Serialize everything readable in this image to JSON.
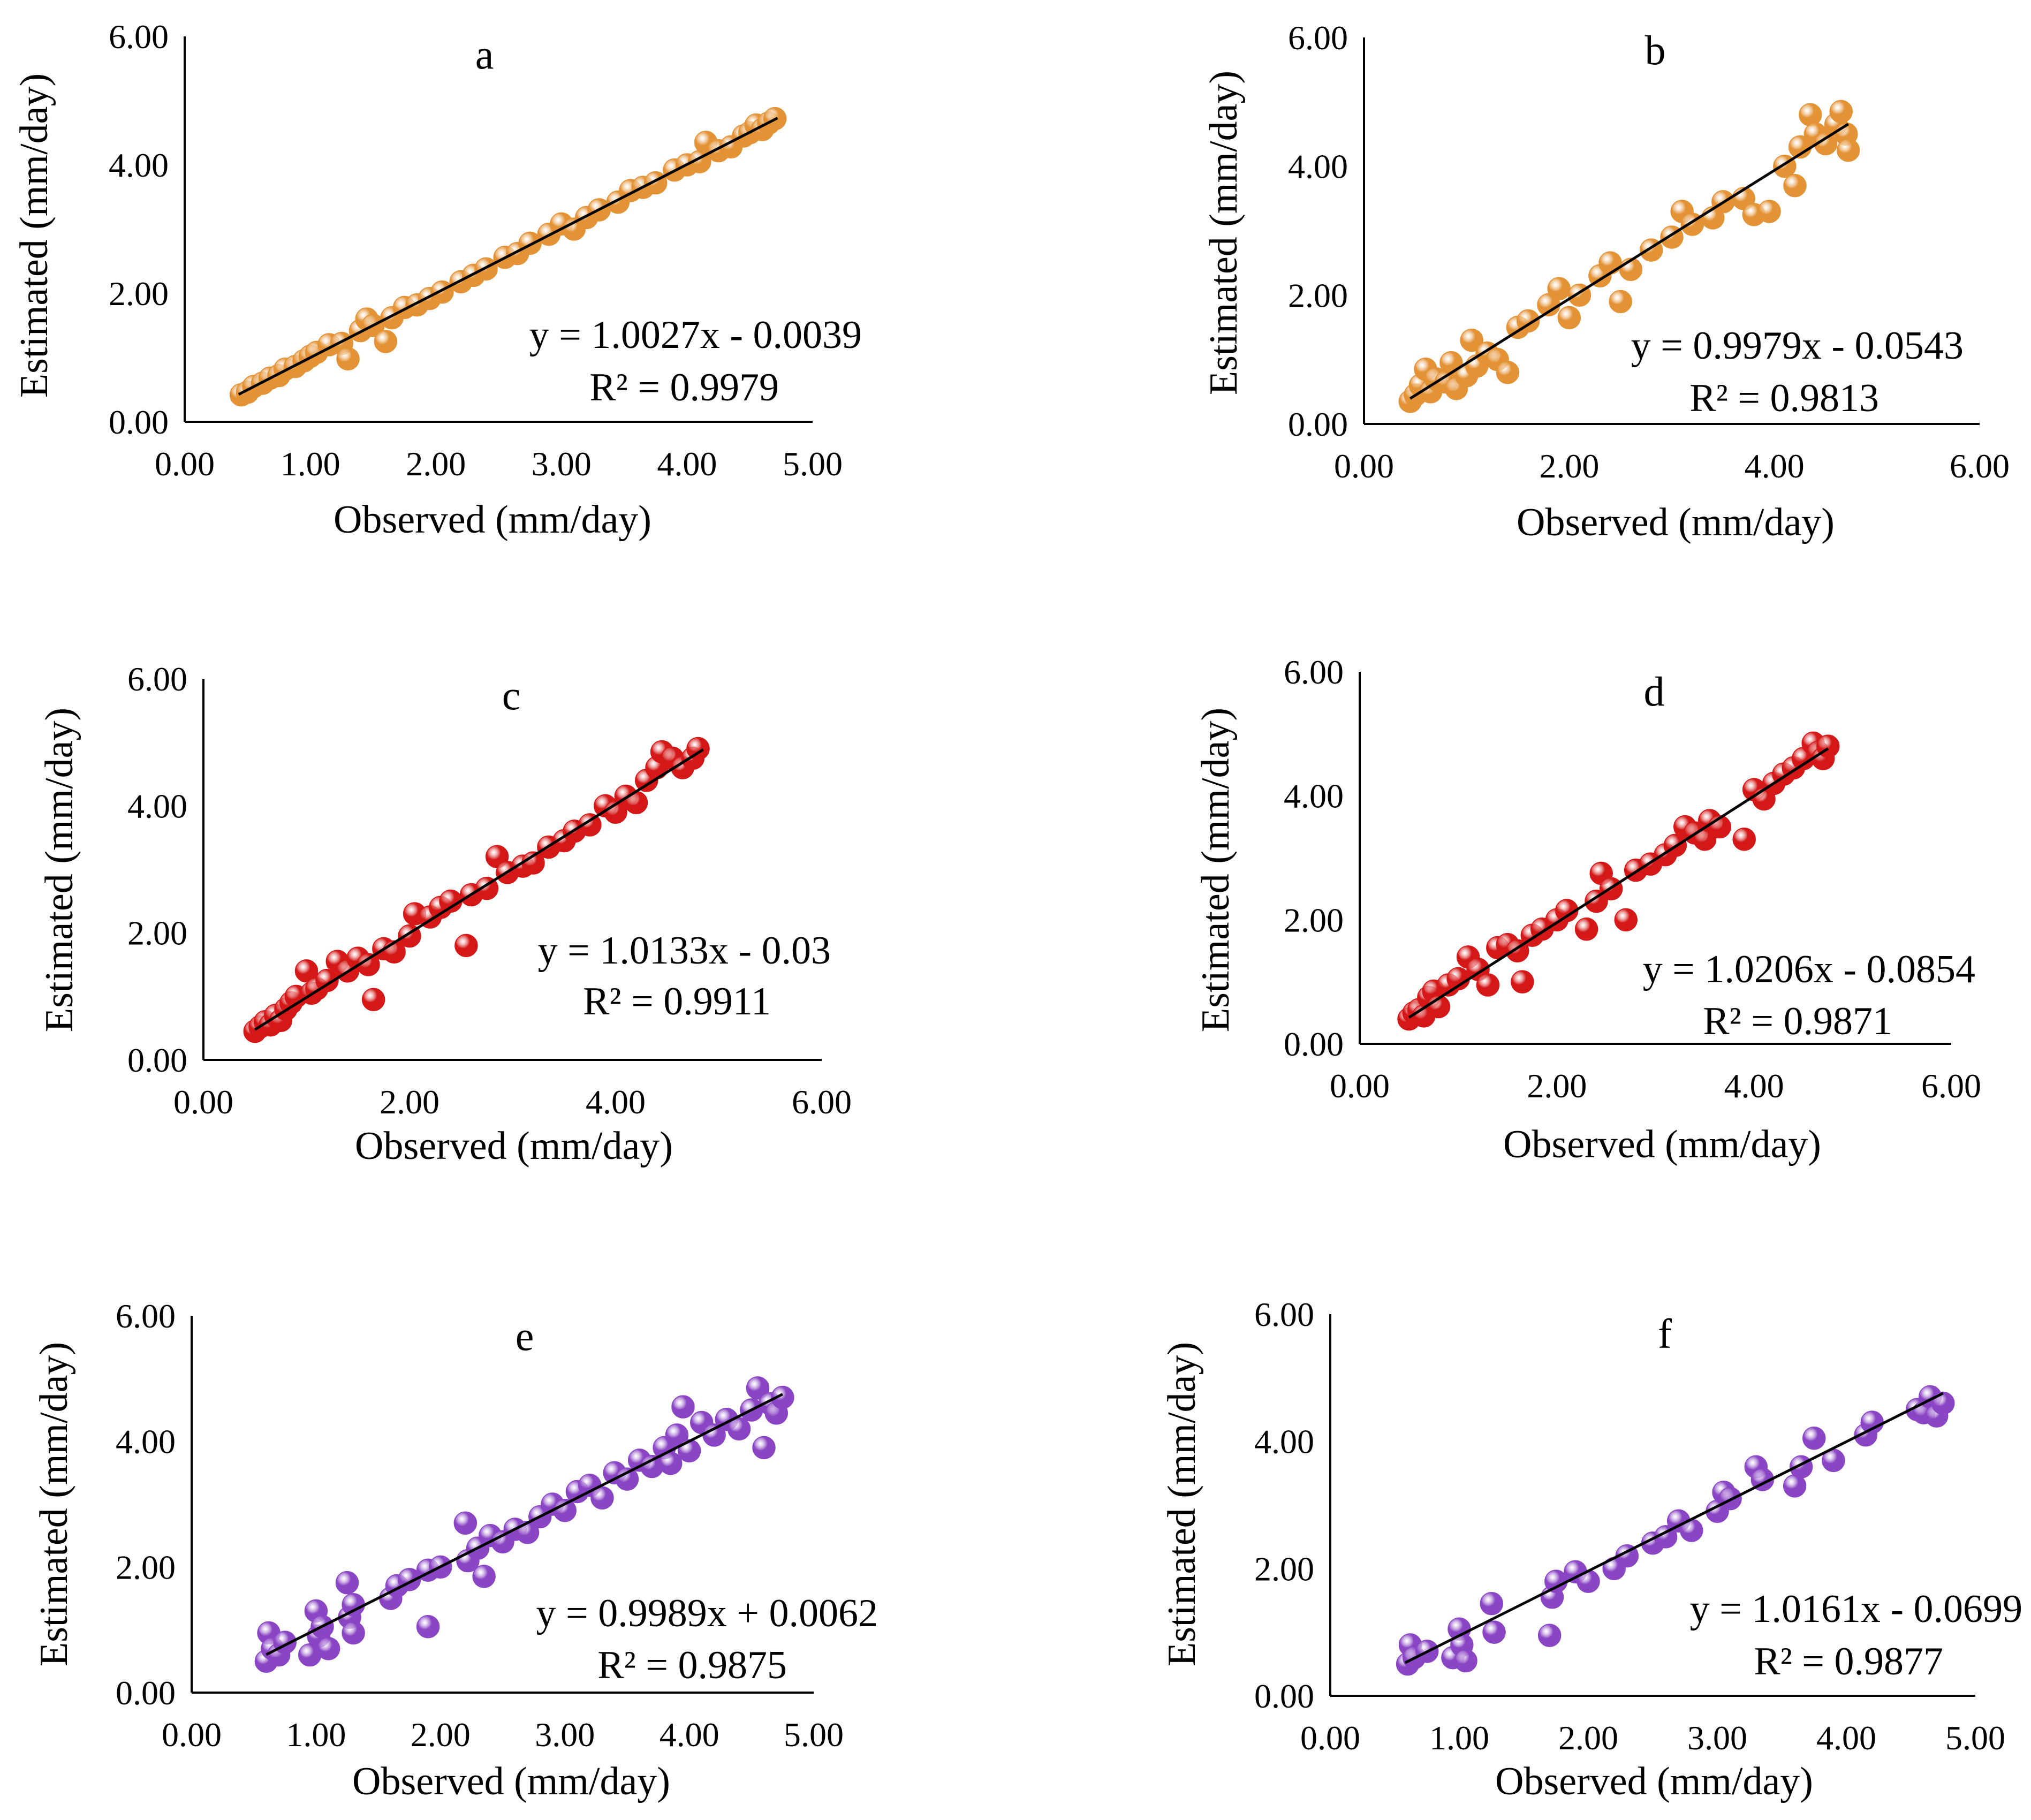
{
  "colors": {
    "orange": "#e39235",
    "red": "#d41818",
    "purple": "#8a45c4",
    "axis": "#000000"
  },
  "chart_data": [
    {
      "panel": "a",
      "type": "scatter",
      "marker_color": "orange",
      "xlim": [
        0,
        5
      ],
      "ylim": [
        0,
        6
      ],
      "xticks": [
        "0.00",
        "1.00",
        "2.00",
        "3.00",
        "4.00",
        "5.00"
      ],
      "yticks": [
        "0.00",
        "2.00",
        "4.00",
        "6.00"
      ],
      "xlabel": "Observed (mm/day)",
      "ylabel": "Estimated (mm/day)",
      "trendline": {
        "slope": 1.0027,
        "intercept": -0.0039,
        "x_range": [
          0.43,
          4.72
        ]
      },
      "equation": "y = 1.0027x - 0.0039",
      "r2_text": "R² = 0.9979",
      "points": [
        [
          0.45,
          0.42
        ],
        [
          0.5,
          0.46
        ],
        [
          0.55,
          0.55
        ],
        [
          0.62,
          0.6
        ],
        [
          0.68,
          0.68
        ],
        [
          0.75,
          0.72
        ],
        [
          0.8,
          0.82
        ],
        [
          0.88,
          0.86
        ],
        [
          0.95,
          0.95
        ],
        [
          1.0,
          1.02
        ],
        [
          1.05,
          1.08
        ],
        [
          1.15,
          1.2
        ],
        [
          1.25,
          1.22
        ],
        [
          1.3,
          0.98
        ],
        [
          1.4,
          1.42
        ],
        [
          1.45,
          1.6
        ],
        [
          1.5,
          1.5
        ],
        [
          1.6,
          1.25
        ],
        [
          1.65,
          1.62
        ],
        [
          1.75,
          1.78
        ],
        [
          1.85,
          1.82
        ],
        [
          1.95,
          1.92
        ],
        [
          2.05,
          2.02
        ],
        [
          2.2,
          2.18
        ],
        [
          2.3,
          2.28
        ],
        [
          2.4,
          2.38
        ],
        [
          2.55,
          2.56
        ],
        [
          2.65,
          2.62
        ],
        [
          2.75,
          2.78
        ],
        [
          2.9,
          2.92
        ],
        [
          3.0,
          3.08
        ],
        [
          3.1,
          3.0
        ],
        [
          3.2,
          3.18
        ],
        [
          3.3,
          3.3
        ],
        [
          3.45,
          3.42
        ],
        [
          3.55,
          3.6
        ],
        [
          3.65,
          3.65
        ],
        [
          3.75,
          3.72
        ],
        [
          3.9,
          3.92
        ],
        [
          4.0,
          4.0
        ],
        [
          4.1,
          4.05
        ],
        [
          4.15,
          4.35
        ],
        [
          4.25,
          4.22
        ],
        [
          4.35,
          4.28
        ],
        [
          4.45,
          4.45
        ],
        [
          4.5,
          4.5
        ],
        [
          4.55,
          4.62
        ],
        [
          4.6,
          4.55
        ],
        [
          4.65,
          4.65
        ],
        [
          4.7,
          4.72
        ]
      ]
    },
    {
      "panel": "b",
      "type": "scatter",
      "marker_color": "orange",
      "xlim": [
        0,
        6
      ],
      "ylim": [
        0,
        6
      ],
      "xticks": [
        "0.00",
        "2.00",
        "4.00",
        "6.00"
      ],
      "yticks": [
        "0.00",
        "2.00",
        "4.00",
        "6.00"
      ],
      "xlabel": "Observed (mm/day)",
      "ylabel": "Estimated (mm/day)",
      "trendline": {
        "slope": 0.9979,
        "intercept": -0.0543,
        "x_range": [
          0.45,
          4.72
        ]
      },
      "equation": "y = 0.9979x - 0.0543",
      "r2_text": "R² = 0.9813",
      "points": [
        [
          0.45,
          0.35
        ],
        [
          0.5,
          0.45
        ],
        [
          0.55,
          0.6
        ],
        [
          0.6,
          0.85
        ],
        [
          0.65,
          0.5
        ],
        [
          0.7,
          0.7
        ],
        [
          0.8,
          0.65
        ],
        [
          0.85,
          0.95
        ],
        [
          0.9,
          0.55
        ],
        [
          1.0,
          0.75
        ],
        [
          1.05,
          1.3
        ],
        [
          1.1,
          0.9
        ],
        [
          1.2,
          1.1
        ],
        [
          1.3,
          1.0
        ],
        [
          1.4,
          0.8
        ],
        [
          1.5,
          1.5
        ],
        [
          1.6,
          1.6
        ],
        [
          1.8,
          1.85
        ],
        [
          1.9,
          2.1
        ],
        [
          2.0,
          1.65
        ],
        [
          2.1,
          2.0
        ],
        [
          2.3,
          2.3
        ],
        [
          2.4,
          2.5
        ],
        [
          2.5,
          1.9
        ],
        [
          2.6,
          2.4
        ],
        [
          2.8,
          2.7
        ],
        [
          3.0,
          2.9
        ],
        [
          3.1,
          3.3
        ],
        [
          3.2,
          3.1
        ],
        [
          3.4,
          3.2
        ],
        [
          3.5,
          3.45
        ],
        [
          3.7,
          3.5
        ],
        [
          3.8,
          3.25
        ],
        [
          3.95,
          3.3
        ],
        [
          4.1,
          4.0
        ],
        [
          4.2,
          3.7
        ],
        [
          4.25,
          4.3
        ],
        [
          4.35,
          4.8
        ],
        [
          4.4,
          4.5
        ],
        [
          4.5,
          4.35
        ],
        [
          4.6,
          4.65
        ],
        [
          4.65,
          4.85
        ],
        [
          4.7,
          4.5
        ],
        [
          4.72,
          4.25
        ]
      ]
    },
    {
      "panel": "c",
      "type": "scatter",
      "marker_color": "red",
      "xlim": [
        0,
        6
      ],
      "ylim": [
        0,
        6
      ],
      "xticks": [
        "0.00",
        "2.00",
        "4.00",
        "6.00"
      ],
      "yticks": [
        "0.00",
        "2.00",
        "4.00",
        "6.00"
      ],
      "xlabel": "Observed (mm/day)",
      "ylabel": "Estimated (mm/day)",
      "trendline": {
        "slope": 1.0133,
        "intercept": -0.03,
        "x_range": [
          0.5,
          4.85
        ]
      },
      "equation": "y = 1.0133x - 0.03",
      "r2_text": "R² = 0.9911",
      "points": [
        [
          0.5,
          0.45
        ],
        [
          0.55,
          0.52
        ],
        [
          0.6,
          0.6
        ],
        [
          0.65,
          0.55
        ],
        [
          0.7,
          0.7
        ],
        [
          0.75,
          0.62
        ],
        [
          0.8,
          0.8
        ],
        [
          0.85,
          0.9
        ],
        [
          0.9,
          1.0
        ],
        [
          1.0,
          1.4
        ],
        [
          1.05,
          1.05
        ],
        [
          1.1,
          1.12
        ],
        [
          1.2,
          1.25
        ],
        [
          1.3,
          1.55
        ],
        [
          1.4,
          1.4
        ],
        [
          1.5,
          1.6
        ],
        [
          1.6,
          1.5
        ],
        [
          1.65,
          0.95
        ],
        [
          1.75,
          1.75
        ],
        [
          1.85,
          1.7
        ],
        [
          2.0,
          1.95
        ],
        [
          2.05,
          2.3
        ],
        [
          2.2,
          2.25
        ],
        [
          2.3,
          2.4
        ],
        [
          2.4,
          2.5
        ],
        [
          2.55,
          1.8
        ],
        [
          2.6,
          2.6
        ],
        [
          2.75,
          2.7
        ],
        [
          2.85,
          3.2
        ],
        [
          2.95,
          2.95
        ],
        [
          3.1,
          3.05
        ],
        [
          3.2,
          3.1
        ],
        [
          3.35,
          3.35
        ],
        [
          3.5,
          3.45
        ],
        [
          3.6,
          3.6
        ],
        [
          3.75,
          3.7
        ],
        [
          3.9,
          4.0
        ],
        [
          4.0,
          3.9
        ],
        [
          4.1,
          4.15
        ],
        [
          4.2,
          4.05
        ],
        [
          4.3,
          4.4
        ],
        [
          4.4,
          4.6
        ],
        [
          4.45,
          4.85
        ],
        [
          4.55,
          4.75
        ],
        [
          4.65,
          4.6
        ],
        [
          4.75,
          4.75
        ],
        [
          4.8,
          4.9
        ]
      ]
    },
    {
      "panel": "d",
      "type": "scatter",
      "marker_color": "red",
      "xlim": [
        0,
        6
      ],
      "ylim": [
        0,
        6
      ],
      "xticks": [
        "0.00",
        "2.00",
        "4.00",
        "6.00"
      ],
      "yticks": [
        "0.00",
        "2.00",
        "4.00",
        "6.00"
      ],
      "xlabel": "Observed (mm/day)",
      "ylabel": "Estimated (mm/day)",
      "trendline": {
        "slope": 1.0206,
        "intercept": -0.0854,
        "x_range": [
          0.5,
          4.75
        ]
      },
      "equation": "y = 1.0206x - 0.0854",
      "r2_text": "R² = 0.9871",
      "points": [
        [
          0.5,
          0.4
        ],
        [
          0.55,
          0.5
        ],
        [
          0.6,
          0.55
        ],
        [
          0.65,
          0.45
        ],
        [
          0.7,
          0.75
        ],
        [
          0.75,
          0.85
        ],
        [
          0.8,
          0.6
        ],
        [
          0.9,
          0.95
        ],
        [
          1.0,
          1.05
        ],
        [
          1.1,
          1.4
        ],
        [
          1.2,
          1.2
        ],
        [
          1.3,
          0.95
        ],
        [
          1.4,
          1.55
        ],
        [
          1.5,
          1.6
        ],
        [
          1.6,
          1.5
        ],
        [
          1.65,
          1.0
        ],
        [
          1.75,
          1.75
        ],
        [
          1.85,
          1.85
        ],
        [
          2.0,
          2.0
        ],
        [
          2.1,
          2.15
        ],
        [
          2.3,
          1.85
        ],
        [
          2.4,
          2.3
        ],
        [
          2.45,
          2.75
        ],
        [
          2.55,
          2.5
        ],
        [
          2.7,
          2.0
        ],
        [
          2.8,
          2.8
        ],
        [
          2.95,
          2.9
        ],
        [
          3.1,
          3.05
        ],
        [
          3.2,
          3.2
        ],
        [
          3.3,
          3.5
        ],
        [
          3.4,
          3.4
        ],
        [
          3.5,
          3.3
        ],
        [
          3.55,
          3.6
        ],
        [
          3.65,
          3.5
        ],
        [
          3.9,
          3.3
        ],
        [
          4.0,
          4.1
        ],
        [
          4.1,
          3.95
        ],
        [
          4.2,
          4.2
        ],
        [
          4.3,
          4.35
        ],
        [
          4.4,
          4.45
        ],
        [
          4.5,
          4.6
        ],
        [
          4.6,
          4.85
        ],
        [
          4.65,
          4.7
        ],
        [
          4.7,
          4.6
        ],
        [
          4.75,
          4.8
        ]
      ]
    },
    {
      "panel": "e",
      "type": "scatter",
      "marker_color": "purple",
      "xlim": [
        0,
        5
      ],
      "ylim": [
        0,
        6
      ],
      "xticks": [
        "0.00",
        "1.00",
        "2.00",
        "3.00",
        "4.00",
        "5.00"
      ],
      "yticks": [
        "0.00",
        "2.00",
        "4.00",
        "6.00"
      ],
      "xlabel": "Observed (mm/day)",
      "ylabel": "Estimated (mm/day)",
      "trendline": {
        "slope": 0.9989,
        "intercept": 0.0062,
        "x_range": [
          0.6,
          4.75
        ]
      },
      "equation": "y = 0.9989x + 0.0062",
      "r2_text": "R² = 0.9875",
      "points": [
        [
          0.6,
          0.5
        ],
        [
          0.62,
          0.95
        ],
        [
          0.65,
          0.7
        ],
        [
          0.7,
          0.6
        ],
        [
          0.75,
          0.8
        ],
        [
          0.95,
          0.6
        ],
        [
          1.0,
          1.3
        ],
        [
          1.02,
          0.9
        ],
        [
          1.05,
          1.05
        ],
        [
          1.1,
          0.7
        ],
        [
          1.25,
          1.75
        ],
        [
          1.27,
          1.2
        ],
        [
          1.3,
          0.95
        ],
        [
          1.3,
          1.4
        ],
        [
          1.6,
          1.5
        ],
        [
          1.65,
          1.7
        ],
        [
          1.75,
          1.8
        ],
        [
          1.9,
          1.05
        ],
        [
          1.9,
          1.95
        ],
        [
          2.0,
          2.0
        ],
        [
          2.2,
          2.7
        ],
        [
          2.22,
          2.1
        ],
        [
          2.3,
          2.3
        ],
        [
          2.35,
          1.85
        ],
        [
          2.4,
          2.5
        ],
        [
          2.5,
          2.4
        ],
        [
          2.6,
          2.6
        ],
        [
          2.7,
          2.55
        ],
        [
          2.8,
          2.8
        ],
        [
          2.9,
          3.0
        ],
        [
          3.0,
          2.9
        ],
        [
          3.1,
          3.2
        ],
        [
          3.2,
          3.3
        ],
        [
          3.3,
          3.1
        ],
        [
          3.4,
          3.5
        ],
        [
          3.5,
          3.4
        ],
        [
          3.6,
          3.7
        ],
        [
          3.7,
          3.6
        ],
        [
          3.8,
          3.9
        ],
        [
          3.85,
          3.65
        ],
        [
          3.9,
          4.1
        ],
        [
          3.95,
          4.55
        ],
        [
          4.0,
          3.85
        ],
        [
          4.1,
          4.3
        ],
        [
          4.2,
          4.1
        ],
        [
          4.3,
          4.35
        ],
        [
          4.4,
          4.2
        ],
        [
          4.5,
          4.5
        ],
        [
          4.55,
          4.85
        ],
        [
          4.6,
          3.9
        ],
        [
          4.65,
          4.6
        ],
        [
          4.7,
          4.45
        ],
        [
          4.75,
          4.7
        ]
      ]
    },
    {
      "panel": "f",
      "type": "scatter",
      "marker_color": "purple",
      "xlim": [
        0,
        5
      ],
      "ylim": [
        0,
        6
      ],
      "xticks": [
        "0.00",
        "1.00",
        "2.00",
        "3.00",
        "4.00",
        "5.00"
      ],
      "yticks": [
        "0.00",
        "2.00",
        "4.00",
        "6.00"
      ],
      "xlabel": "Observed (mm/day)",
      "ylabel": "Estimated (mm/day)",
      "trendline": {
        "slope": 1.0161,
        "intercept": -0.0699,
        "x_range": [
          0.58,
          4.75
        ]
      },
      "equation": "y = 1.0161x - 0.0699",
      "r2_text": "R² = 0.9877",
      "points": [
        [
          0.6,
          0.5
        ],
        [
          0.62,
          0.8
        ],
        [
          0.65,
          0.6
        ],
        [
          0.75,
          0.7
        ],
        [
          0.95,
          0.6
        ],
        [
          1.0,
          1.05
        ],
        [
          1.02,
          0.8
        ],
        [
          1.05,
          0.55
        ],
        [
          1.25,
          1.45
        ],
        [
          1.27,
          1.0
        ],
        [
          1.7,
          0.95
        ],
        [
          1.72,
          1.55
        ],
        [
          1.75,
          1.8
        ],
        [
          1.9,
          1.95
        ],
        [
          2.0,
          1.8
        ],
        [
          2.2,
          2.0
        ],
        [
          2.3,
          2.2
        ],
        [
          2.5,
          2.4
        ],
        [
          2.6,
          2.5
        ],
        [
          2.7,
          2.75
        ],
        [
          2.8,
          2.6
        ],
        [
          3.0,
          2.9
        ],
        [
          3.05,
          3.2
        ],
        [
          3.1,
          3.1
        ],
        [
          3.3,
          3.6
        ],
        [
          3.35,
          3.4
        ],
        [
          3.6,
          3.3
        ],
        [
          3.65,
          3.6
        ],
        [
          3.75,
          4.05
        ],
        [
          3.9,
          3.7
        ],
        [
          4.15,
          4.1
        ],
        [
          4.2,
          4.3
        ],
        [
          4.55,
          4.5
        ],
        [
          4.6,
          4.45
        ],
        [
          4.65,
          4.7
        ],
        [
          4.7,
          4.4
        ],
        [
          4.75,
          4.6
        ]
      ]
    }
  ]
}
